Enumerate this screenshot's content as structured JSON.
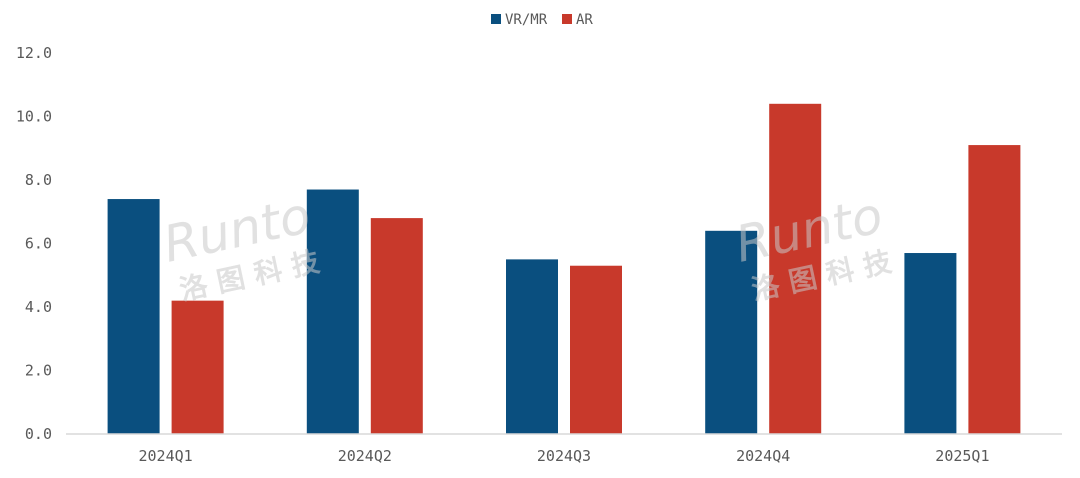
{
  "chart_data": {
    "type": "bar",
    "categories": [
      "2024Q1",
      "2024Q2",
      "2024Q3",
      "2024Q4",
      "2025Q1"
    ],
    "series": [
      {
        "name": "VR/MR",
        "color": "#0a4f7f",
        "values": [
          7.4,
          7.7,
          5.5,
          6.4,
          5.7
        ]
      },
      {
        "name": "AR",
        "color": "#c8392b",
        "values": [
          4.2,
          6.8,
          5.3,
          10.4,
          9.1
        ]
      }
    ],
    "y_ticks": [
      "0.0",
      "2.0",
      "4.0",
      "6.0",
      "8.0",
      "10.0",
      "12.0"
    ],
    "ylim": [
      0,
      12
    ],
    "legend_position": "top-center",
    "grid": false
  },
  "watermark": {
    "brand": "Runto",
    "chinese": "洛图科技",
    "color": "#c8c8c8"
  }
}
